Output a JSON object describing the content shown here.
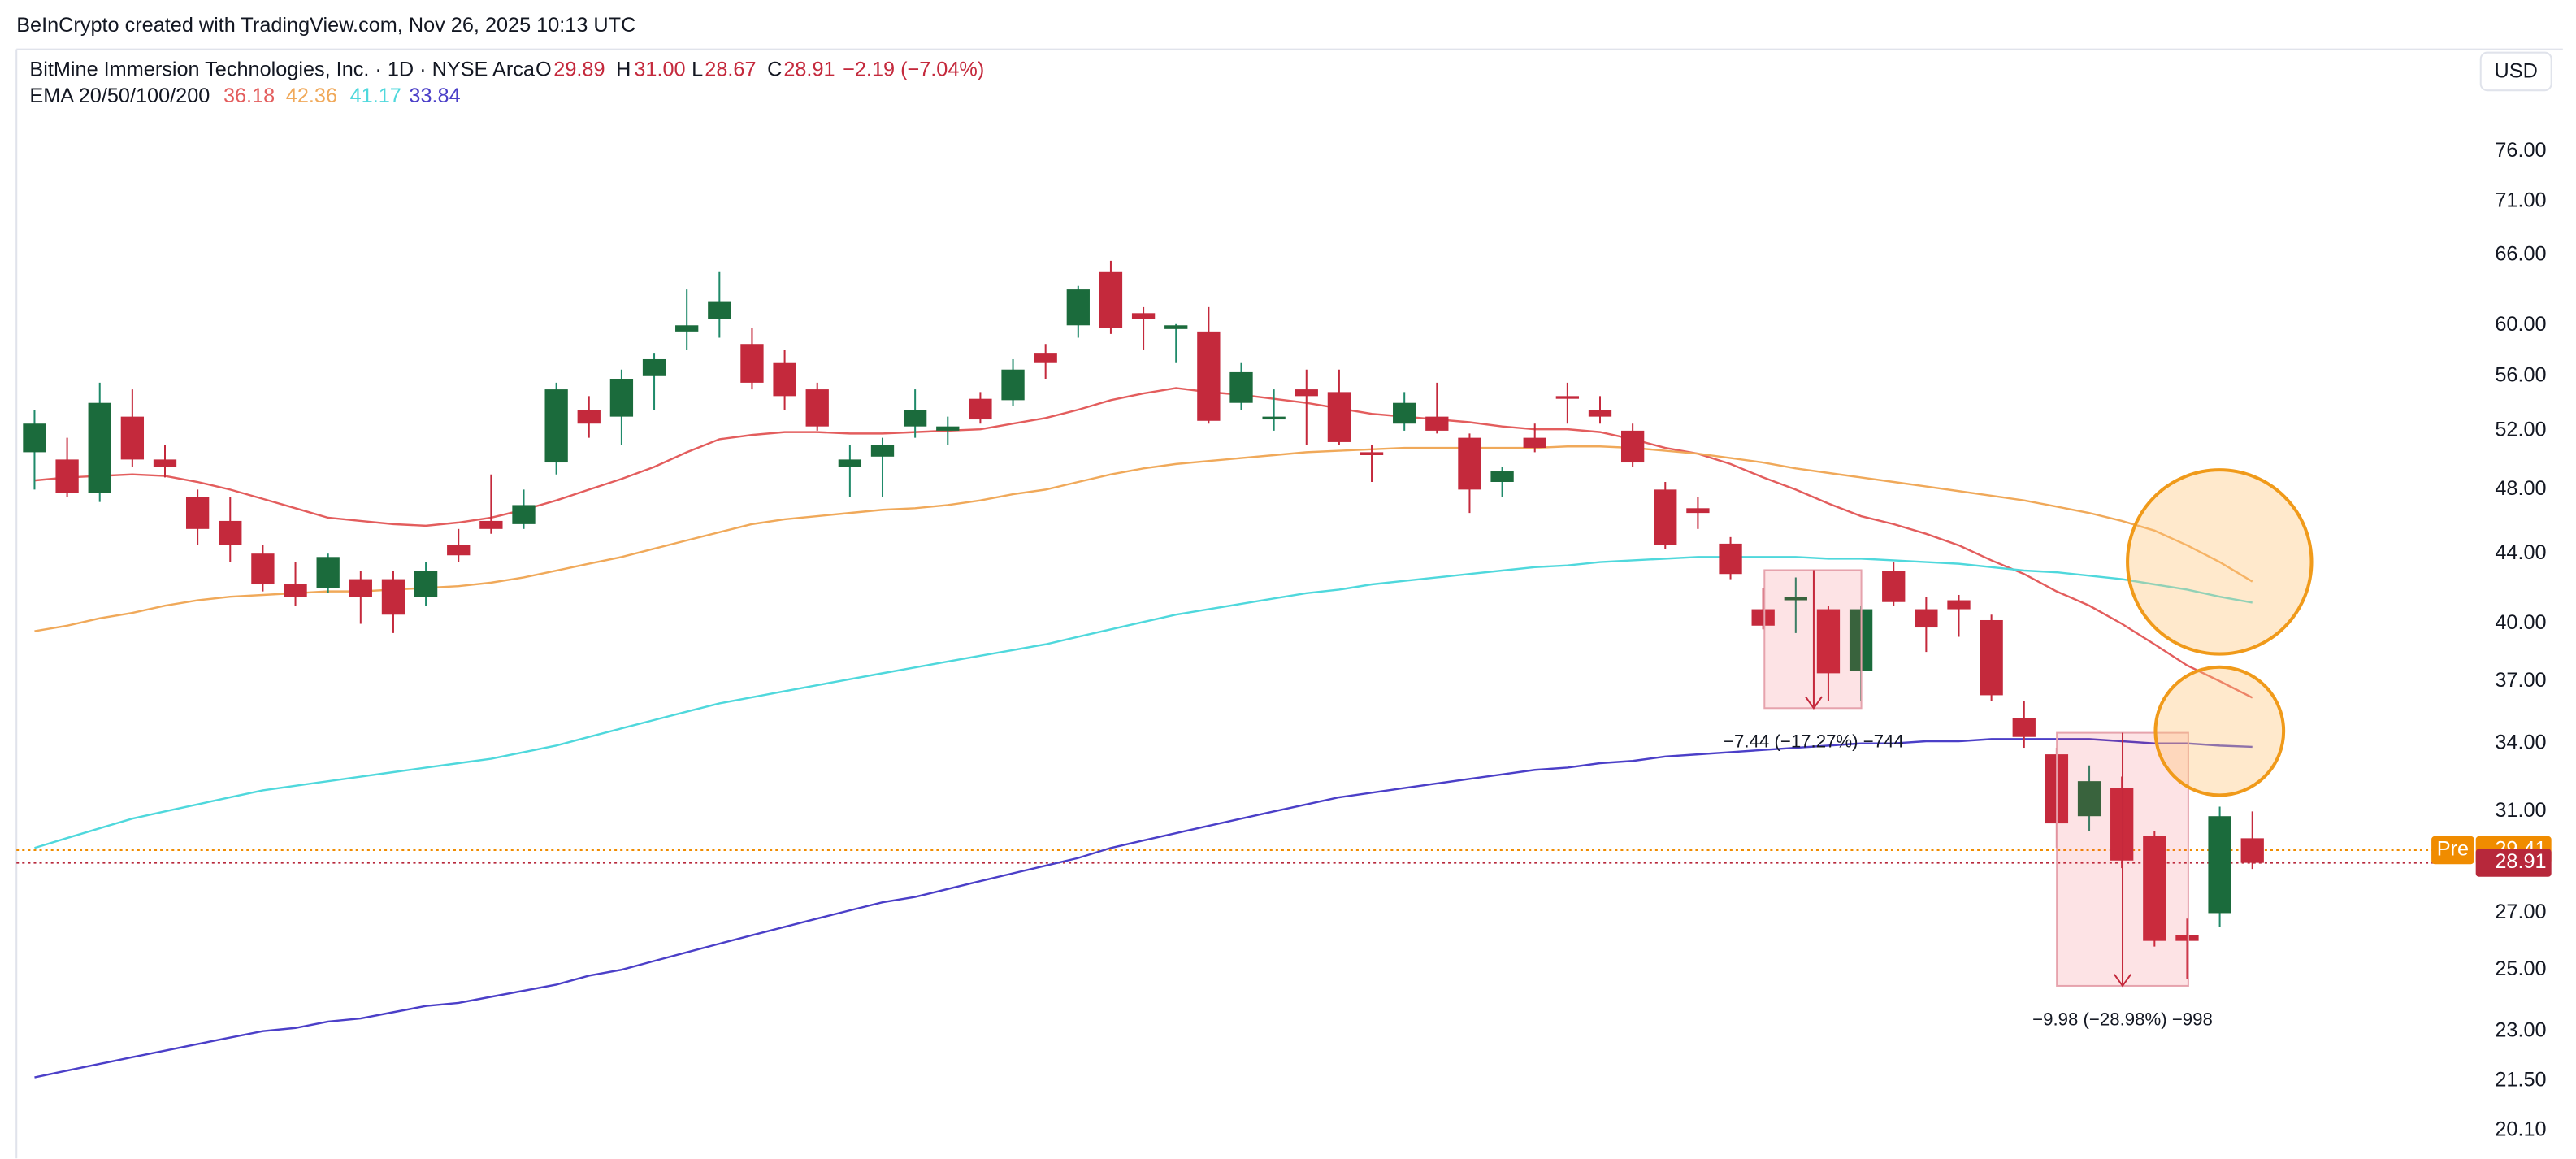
{
  "header": {
    "credit": "BeInCrypto created with TradingView.com, Nov 26, 2025 10:13 UTC"
  },
  "legend": {
    "symbol": "BitMine Immersion Technologies, Inc. · 1D · NYSE Arca",
    "o_label": "O",
    "o": "29.89",
    "h_label": "H",
    "h": "31.00",
    "l_label": "L",
    "l": "28.67",
    "c_label": "C",
    "c": "28.91",
    "change": "−2.19 (−7.04%)"
  },
  "currency": "USD",
  "chart_data": {
    "type": "candlestick",
    "up_color": "#1b6b3c",
    "down_color": "#c4293c",
    "wick_up_color": "#1f8a6a",
    "wick_down_color": "#c4293c",
    "log_scale": true,
    "grid": false,
    "ylim": [
      19.35,
      87.3
    ],
    "yticks": [
      {
        "value": 76,
        "label": "76.00"
      },
      {
        "value": 71,
        "label": "71.00"
      },
      {
        "value": 66,
        "label": "66.00"
      },
      {
        "value": 60,
        "label": "60.00"
      },
      {
        "value": 56,
        "label": "56.00"
      },
      {
        "value": 52,
        "label": "52.00"
      },
      {
        "value": 48,
        "label": "48.00"
      },
      {
        "value": 44,
        "label": "44.00"
      },
      {
        "value": 40,
        "label": "40.00"
      },
      {
        "value": 37,
        "label": "37.00"
      },
      {
        "value": 34,
        "label": "34.00"
      },
      {
        "value": 31,
        "label": "31.00"
      },
      {
        "value": 27,
        "label": "27.00"
      },
      {
        "value": 25,
        "label": "25.00"
      },
      {
        "value": 23,
        "label": "23.00"
      },
      {
        "value": 21.5,
        "label": "21.50"
      },
      {
        "value": 20.1,
        "label": "20.10"
      }
    ],
    "open": [
      50.5,
      50,
      47.8,
      53,
      50,
      47.5,
      46,
      44,
      42.2,
      42,
      42.5,
      42.5,
      41.5,
      44.5,
      46,
      45.8,
      49.8,
      53.5,
      53,
      56,
      59.5,
      60.5,
      58.5,
      57,
      55,
      49.5,
      50.2,
      52.3,
      52,
      54.3,
      54.2,
      57.8,
      60,
      64.5,
      61,
      59.7,
      59.5,
      54,
      52.8,
      55,
      54.8,
      50.5,
      52.5,
      53,
      51.5,
      48.5,
      51.5,
      54.5,
      53.5,
      52,
      48,
      46.8,
      44.6,
      40.8,
      41.3,
      40.8,
      37.5,
      43,
      40.8,
      41.3,
      40.2,
      35.2,
      33.5,
      30.8,
      32,
      30,
      26.2,
      27,
      29.89
    ],
    "high": [
      53.5,
      51.5,
      55.5,
      55,
      51,
      48,
      47.5,
      44.5,
      43.5,
      44,
      43,
      43,
      43.5,
      45.5,
      49,
      48,
      55.5,
      54.5,
      56.5,
      57.8,
      63,
      64.5,
      59.8,
      58,
      55.5,
      51,
      51.5,
      55,
      53,
      54.8,
      57.3,
      58.5,
      63.3,
      65.5,
      61.5,
      60.1,
      61.5,
      57,
      55,
      56.5,
      56.5,
      51,
      54.8,
      55.5,
      51.8,
      49.5,
      52.5,
      55.5,
      54.5,
      52.5,
      48.5,
      47.5,
      45,
      42,
      42.6,
      41,
      41,
      43.5,
      41.5,
      41.6,
      40.5,
      36,
      33.8,
      33,
      32.5,
      30.2,
      26.8,
      31.2,
      31
    ],
    "low": [
      48,
      47.5,
      47.2,
      49.5,
      48.8,
      44.5,
      43.5,
      41.8,
      41,
      41.7,
      40,
      39.5,
      41,
      43.5,
      45.2,
      45.5,
      49,
      51.5,
      51,
      53.5,
      58,
      59,
      55,
      53.5,
      52,
      47.5,
      47.5,
      51.5,
      51,
      52.5,
      53.8,
      55.8,
      59,
      59.3,
      58,
      57,
      52.5,
      53.5,
      52,
      51,
      51,
      48.5,
      52,
      51.8,
      46.5,
      47.5,
      50.5,
      52.5,
      52.5,
      49.5,
      44.3,
      45.5,
      42.5,
      39.7,
      39.5,
      36,
      36,
      41,
      38.5,
      39.3,
      36,
      33.8,
      29.5,
      30.2,
      28.7,
      25.8,
      24.7,
      26.5,
      28.67
    ],
    "close": [
      52.5,
      47.8,
      54,
      50,
      49.5,
      45.5,
      44.5,
      42.2,
      41.5,
      43.8,
      41.5,
      40.5,
      43,
      43.9,
      45.5,
      47,
      55,
      52.5,
      55.8,
      57.3,
      60,
      62,
      55.5,
      54.5,
      52.3,
      50,
      51,
      53.5,
      52.3,
      52.8,
      56.5,
      57,
      63,
      59.8,
      60.5,
      60,
      52.7,
      56.3,
      53,
      54.5,
      51.2,
      50.3,
      54,
      52,
      48,
      49.2,
      50.8,
      54.3,
      53,
      49.8,
      44.5,
      46.5,
      42.8,
      39.9,
      41.5,
      37.4,
      40.8,
      41.2,
      39.8,
      40.8,
      36.3,
      34.3,
      30.5,
      32.3,
      29,
      26,
      26,
      30.8,
      28.91
    ],
    "indicator_label": "EMA 20/50/100/200",
    "series": [
      {
        "color": "#e35d5d",
        "values": [
          48.6,
          48.8,
          48.9,
          49.0,
          48.9,
          48.5,
          48.0,
          47.4,
          46.8,
          46.2,
          46.0,
          45.8,
          45.7,
          45.9,
          46.2,
          46.7,
          47.3,
          48.0,
          48.7,
          49.5,
          50.5,
          51.4,
          51.7,
          51.9,
          51.9,
          51.8,
          51.8,
          51.9,
          52.0,
          52.1,
          52.5,
          52.9,
          53.5,
          54.2,
          54.7,
          55.1,
          54.8,
          54.6,
          54.3,
          54.0,
          53.6,
          53.2,
          53.0,
          52.8,
          52.6,
          52.3,
          52.1,
          52.1,
          51.9,
          51.4,
          50.8,
          50.4,
          49.7,
          48.8,
          48.0,
          47.1,
          46.3,
          45.8,
          45.2,
          44.5,
          43.6,
          42.8,
          41.8,
          41.0,
          40.0,
          38.9,
          37.8,
          37.0,
          36.18
        ]
      },
      {
        "color": "#f0a95a",
        "values": [
          39.6,
          39.9,
          40.3,
          40.6,
          41.0,
          41.3,
          41.5,
          41.6,
          41.7,
          41.8,
          41.8,
          41.9,
          42.0,
          42.1,
          42.3,
          42.6,
          43.0,
          43.4,
          43.8,
          44.3,
          44.8,
          45.3,
          45.8,
          46.1,
          46.3,
          46.5,
          46.7,
          46.8,
          47.0,
          47.3,
          47.7,
          48.0,
          48.5,
          49.0,
          49.4,
          49.7,
          49.9,
          50.1,
          50.3,
          50.5,
          50.6,
          50.7,
          50.8,
          50.8,
          50.8,
          50.8,
          50.8,
          50.9,
          50.9,
          50.8,
          50.6,
          50.4,
          50.1,
          49.8,
          49.4,
          49.1,
          48.8,
          48.5,
          48.2,
          47.9,
          47.6,
          47.3,
          46.9,
          46.5,
          46.0,
          45.4,
          44.5,
          43.5,
          42.36
        ]
      },
      {
        "color": "#4fd8dc",
        "values": [
          29.5,
          29.9,
          30.3,
          30.7,
          31.0,
          31.3,
          31.6,
          31.9,
          32.1,
          32.3,
          32.5,
          32.7,
          32.9,
          33.1,
          33.3,
          33.6,
          33.9,
          34.3,
          34.7,
          35.1,
          35.5,
          35.9,
          36.2,
          36.5,
          36.8,
          37.1,
          37.4,
          37.7,
          38.0,
          38.3,
          38.6,
          38.9,
          39.3,
          39.7,
          40.1,
          40.5,
          40.8,
          41.1,
          41.4,
          41.7,
          41.9,
          42.2,
          42.4,
          42.6,
          42.8,
          43.0,
          43.2,
          43.3,
          43.5,
          43.6,
          43.7,
          43.8,
          43.8,
          43.8,
          43.8,
          43.7,
          43.7,
          43.6,
          43.5,
          43.4,
          43.2,
          43.0,
          42.9,
          42.7,
          42.5,
          42.2,
          41.9,
          41.5,
          41.17
        ]
      },
      {
        "color": "#4b3fc8",
        "values": [
          21.6,
          21.8,
          22.0,
          22.2,
          22.4,
          22.6,
          22.8,
          23.0,
          23.1,
          23.3,
          23.4,
          23.6,
          23.8,
          23.9,
          24.1,
          24.3,
          24.5,
          24.8,
          25.0,
          25.3,
          25.6,
          25.9,
          26.2,
          26.5,
          26.8,
          27.1,
          27.4,
          27.6,
          27.9,
          28.2,
          28.5,
          28.8,
          29.1,
          29.5,
          29.8,
          30.1,
          30.4,
          30.7,
          31.0,
          31.3,
          31.6,
          31.8,
          32.0,
          32.2,
          32.4,
          32.6,
          32.8,
          32.9,
          33.1,
          33.2,
          33.4,
          33.5,
          33.6,
          33.7,
          33.8,
          33.9,
          34.0,
          34.0,
          34.1,
          34.1,
          34.2,
          34.2,
          34.2,
          34.2,
          34.1,
          34.0,
          34.0,
          33.9,
          33.84
        ]
      }
    ],
    "pre_market": {
      "label": "Pre",
      "value": 29.41,
      "color": "#f08c00"
    },
    "last_price_color": "#b7283b",
    "annotations": [
      {
        "text": "−7.44 (−17.27%) −744"
      },
      {
        "text": "−9.98 (−28.98%) −998"
      }
    ]
  }
}
